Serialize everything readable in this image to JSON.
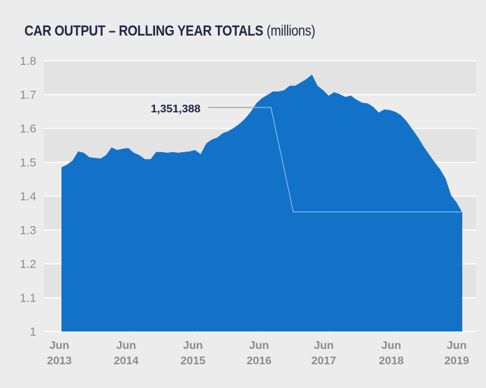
{
  "title": {
    "main": "CAR OUTPUT – ROLLING YEAR TOTALS",
    "unit": "(millions)"
  },
  "colors": {
    "background": "#ececec",
    "band": "#e3e3e3",
    "gridline": "#ffffff",
    "area": "#1272c8",
    "title": "#1f2544",
    "tick_label": "#8c8c8c",
    "annotation_line_outside": "#9a9a9a",
    "annotation_line_inside": "#8fb8e6"
  },
  "annotation": {
    "label": "1,351,388",
    "value": 1.351388
  },
  "chart_data": {
    "type": "area",
    "title": "CAR OUTPUT – ROLLING YEAR TOTALS (millions)",
    "xlabel": "",
    "ylabel": "",
    "ylim": [
      1,
      1.8
    ],
    "yticks": [
      1,
      1.1,
      1.2,
      1.3,
      1.4,
      1.5,
      1.6,
      1.7,
      1.8
    ],
    "ytick_labels": [
      "1",
      "1.1",
      "1.2",
      "1.3",
      "1.4",
      "1.5",
      "1.6",
      "1.7",
      "1.8"
    ],
    "grid": true,
    "legend": null,
    "x_start": "Jun 2013",
    "x_end": "Jun 2019",
    "x_frequency": "monthly",
    "xtick_labels": [
      [
        "Jun",
        "2013"
      ],
      [
        "Jun",
        "2014"
      ],
      [
        "Jun",
        "2015"
      ],
      [
        "Jun",
        "2016"
      ],
      [
        "Jun",
        "2017"
      ],
      [
        "Jun",
        "2018"
      ],
      [
        "Jun",
        "2019"
      ]
    ],
    "series": [
      {
        "name": "Car output rolling year total (millions)",
        "values": [
          1.485,
          1.493,
          1.505,
          1.532,
          1.528,
          1.515,
          1.513,
          1.511,
          1.521,
          1.544,
          1.536,
          1.54,
          1.542,
          1.528,
          1.521,
          1.509,
          1.509,
          1.53,
          1.53,
          1.528,
          1.53,
          1.528,
          1.53,
          1.532,
          1.536,
          1.524,
          1.555,
          1.567,
          1.573,
          1.586,
          1.592,
          1.602,
          1.614,
          1.629,
          1.649,
          1.674,
          1.689,
          1.699,
          1.709,
          1.709,
          1.713,
          1.726,
          1.726,
          1.736,
          1.746,
          1.759,
          1.726,
          1.713,
          1.697,
          1.707,
          1.701,
          1.693,
          1.697,
          1.685,
          1.676,
          1.674,
          1.664,
          1.647,
          1.656,
          1.654,
          1.649,
          1.639,
          1.621,
          1.598,
          1.575,
          1.548,
          1.524,
          1.501,
          1.48,
          1.452,
          1.402,
          1.381,
          1.351
        ]
      }
    ],
    "annotations": [
      {
        "text": "1,351,388",
        "points_to": "Jun 2019",
        "value": 1.351388
      }
    ]
  }
}
